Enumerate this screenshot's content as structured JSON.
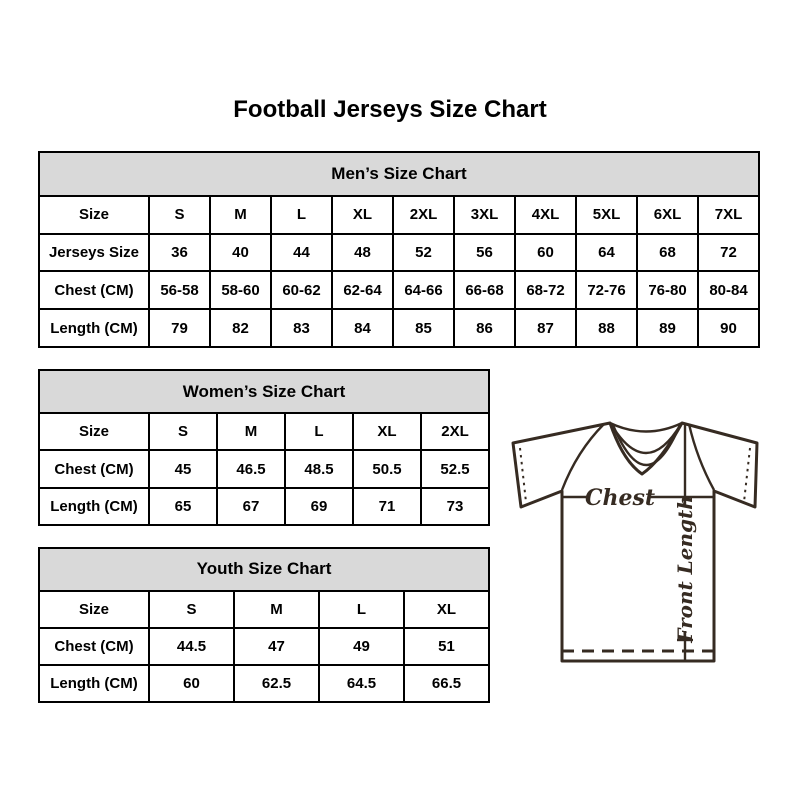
{
  "page_title": "Football Jerseys Size Chart",
  "tables": [
    {
      "id": "mens",
      "title": "Men’s Size Chart",
      "rows": [
        [
          "Size",
          "S",
          "M",
          "L",
          "XL",
          "2XL",
          "3XL",
          "4XL",
          "5XL",
          "6XL",
          "7XL"
        ],
        [
          "Jerseys Size",
          "36",
          "40",
          "44",
          "48",
          "52",
          "56",
          "60",
          "64",
          "68",
          "72"
        ],
        [
          "Chest (CM)",
          "56-58",
          "58-60",
          "60-62",
          "62-64",
          "64-66",
          "66-68",
          "68-72",
          "72-76",
          "76-80",
          "80-84"
        ],
        [
          "Length (CM)",
          "79",
          "82",
          "83",
          "84",
          "85",
          "86",
          "87",
          "88",
          "89",
          "90"
        ]
      ]
    },
    {
      "id": "womens",
      "title": "Women’s Size Chart",
      "rows": [
        [
          "Size",
          "S",
          "M",
          "L",
          "XL",
          "2XL"
        ],
        [
          "Chest (CM)",
          "45",
          "46.5",
          "48.5",
          "50.5",
          "52.5"
        ],
        [
          "Length (CM)",
          "65",
          "67",
          "69",
          "71",
          "73"
        ]
      ]
    },
    {
      "id": "youth",
      "title": "Youth Size Chart",
      "rows": [
        [
          "Size",
          "S",
          "M",
          "L",
          "XL"
        ],
        [
          "Chest (CM)",
          "44.5",
          "47",
          "49",
          "51"
        ],
        [
          "Length (CM)",
          "60",
          "62.5",
          "64.5",
          "66.5"
        ]
      ]
    }
  ],
  "diagram": {
    "chest_label": "Chest",
    "front_length_label": "Front Length"
  },
  "colors": {
    "header_bg": "#d9d9d9",
    "table_border": "#000000",
    "text": "#000000",
    "jersey_line": "#362b22",
    "background": "#ffffff"
  }
}
